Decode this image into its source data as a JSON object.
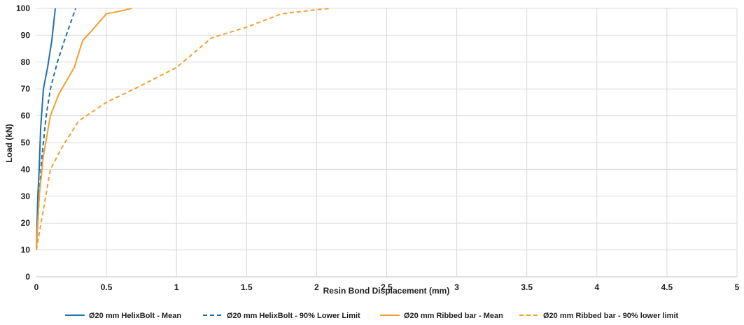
{
  "chart_data": {
    "type": "line",
    "title": "",
    "xlabel": "Resin Bond Displacement (mm)",
    "ylabel": "Load (kN)",
    "xlim": [
      0,
      5
    ],
    "ylim": [
      0,
      100
    ],
    "xticks": [
      "0",
      "0.5",
      "1",
      "1.5",
      "2",
      "2.5",
      "3",
      "3.5",
      "4",
      "4.5",
      "5"
    ],
    "yticks": [
      "0",
      "10",
      "20",
      "30",
      "40",
      "50",
      "60",
      "70",
      "80",
      "90",
      "100"
    ],
    "grid": true,
    "legend_position": "bottom",
    "series": [
      {
        "name": "Ø20 mm HelixBolt - Mean",
        "color": "#1f6fad",
        "dash": "solid",
        "x": [
          0,
          0.005,
          0.01,
          0.02,
          0.03,
          0.05,
          0.08,
          0.11,
          0.135
        ],
        "y": [
          10,
          20,
          30,
          40,
          55,
          70,
          78,
          88,
          100
        ]
      },
      {
        "name": "Ø20 mm HelixBolt - 90% Lower Limit",
        "color": "#1f6fad",
        "dash": "dashed",
        "x": [
          0,
          0.01,
          0.02,
          0.04,
          0.07,
          0.1,
          0.15,
          0.2,
          0.28
        ],
        "y": [
          10,
          20,
          30,
          45,
          60,
          70,
          80,
          88,
          100
        ]
      },
      {
        "name": "Ø20 mm Ribbed bar - Mean",
        "color": "#f0a030",
        "dash": "solid",
        "x": [
          0,
          0.02,
          0.05,
          0.1,
          0.16,
          0.27,
          0.33,
          0.4,
          0.5,
          0.6,
          0.68
        ],
        "y": [
          10,
          30,
          45,
          60,
          68,
          78,
          88,
          92,
          98,
          99,
          100
        ]
      },
      {
        "name": "Ø20 mm Ribbed bar - 90% lower limit",
        "color": "#f0a030",
        "dash": "dashed",
        "x": [
          0,
          0.05,
          0.1,
          0.18,
          0.3,
          0.5,
          0.7,
          1.0,
          1.25,
          1.5,
          1.75,
          2.0,
          2.1
        ],
        "y": [
          10,
          25,
          40,
          48,
          58,
          65,
          70,
          78,
          89,
          93,
          98,
          99.5,
          100
        ]
      }
    ]
  }
}
